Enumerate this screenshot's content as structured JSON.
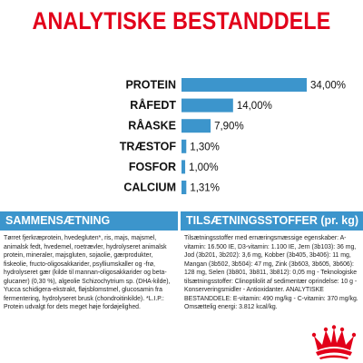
{
  "title": "ANALYTISKE BESTANDDELE",
  "chart_data": {
    "type": "bar",
    "orientation": "horizontal",
    "categories": [
      "PROTEIN",
      "RÅFEDT",
      "RÅASKE",
      "TRÆSTOF",
      "FOSFOR",
      "CALCIUM"
    ],
    "values": [
      34.0,
      14.0,
      7.9,
      1.3,
      1.0,
      1.31
    ],
    "value_labels": [
      "34,00%",
      "14,00%",
      "7,90%",
      "1,30%",
      "1,00%",
      "1,31%"
    ],
    "xlim": [
      0,
      34
    ],
    "grid": false,
    "bar_color": "#3c95cc"
  },
  "composition": {
    "header": "SAMMENSÆTNING",
    "text": "Tørret fjerkræprotein, hvedegluten*, ris, majs, majsmel, animalsk fedt, hvedemel, roetrævler, hydrolyseret animalsk protein, mineraler, majsgluten, sojaolie, gærprodukter, fiskeolie, fructo-oligosakkarider, psylliumskaller og -frø, hydrolyseret gær (kilde til mannan-oligosakkarider og beta-glucaner) (0,30 %), algeolie Schizochytrium sp. (DHA-kilde), Yucca schidigera-ekstrakt, fløjsblomstmel, glucosamin fra fermentering, hydrolyseret brusk (chondroitinkilde). *L.I.P.: Protein udvalgt for dets meget høje fordøjelighed."
  },
  "additives": {
    "header": "TILSÆTNINGSSTOFFER (pr. kg)",
    "text": "Tilsætningsstoffer med ernæringsmæssige egenskaber: A-vitamin: 16.500 IE, D3-vitamin: 1.100 IE, Jern (3b103): 36 mg, Jod (3b201, 3b202): 3,6 mg, Kobber (3b405, 3b406): 11 mg, Mangan (3b502, 3b504): 47 mg, Zink (3b603, 3b605, 3b606): 128 mg, Selen (3b801, 3b811, 3b812): 0,05 mg - Teknologiske tilsætningsstoffer: Clinoptilolit af sedimentær oprindelse: 10 g - Konserveringsmidler - Antioxidanter. ANALYTISKE BESTANDDELE: E-vitamin: 490 mg/kg - C-vitamin: 370 mg/kg. Omsættelig energi: 3.812 kcal/kg."
  },
  "logo": {
    "icon": "royal-canin-crown-icon",
    "color": "#e2001a"
  }
}
